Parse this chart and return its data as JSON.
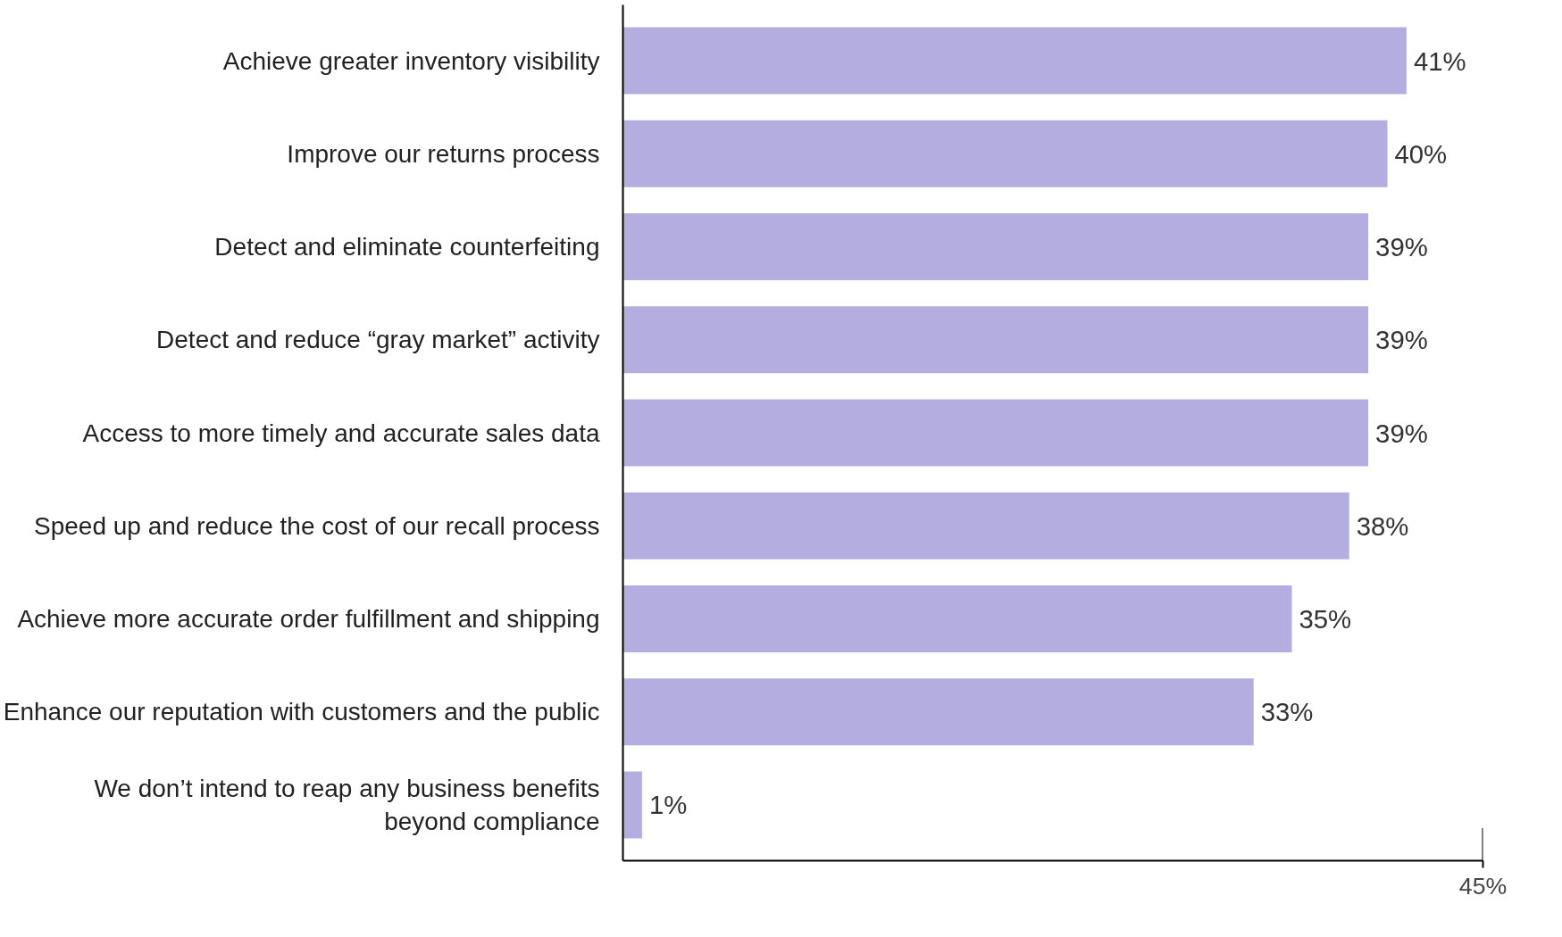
{
  "chart_data": {
    "type": "bar",
    "orientation": "horizontal",
    "categories": [
      "Achieve greater inventory visibility",
      "Improve our returns process",
      "Detect and eliminate counterfeiting",
      "Detect and reduce “gray market” activity",
      "Access to more timely and accurate sales data",
      "Speed up and reduce the cost of our recall process",
      "Achieve more accurate order fulfillment and shipping",
      "Enhance our reputation with customers and the public",
      "We don’t intend to reap any business benefits beyond compliance"
    ],
    "values": [
      41,
      40,
      39,
      39,
      39,
      38,
      35,
      33,
      1
    ],
    "value_labels": [
      "41%",
      "40%",
      "39%",
      "39%",
      "39%",
      "38%",
      "35%",
      "33%",
      "1%"
    ],
    "color": "#b4aee0",
    "xlim": [
      0,
      45
    ],
    "xticks": [
      {
        "value": 45,
        "label": "45%"
      }
    ],
    "grid": false
  }
}
